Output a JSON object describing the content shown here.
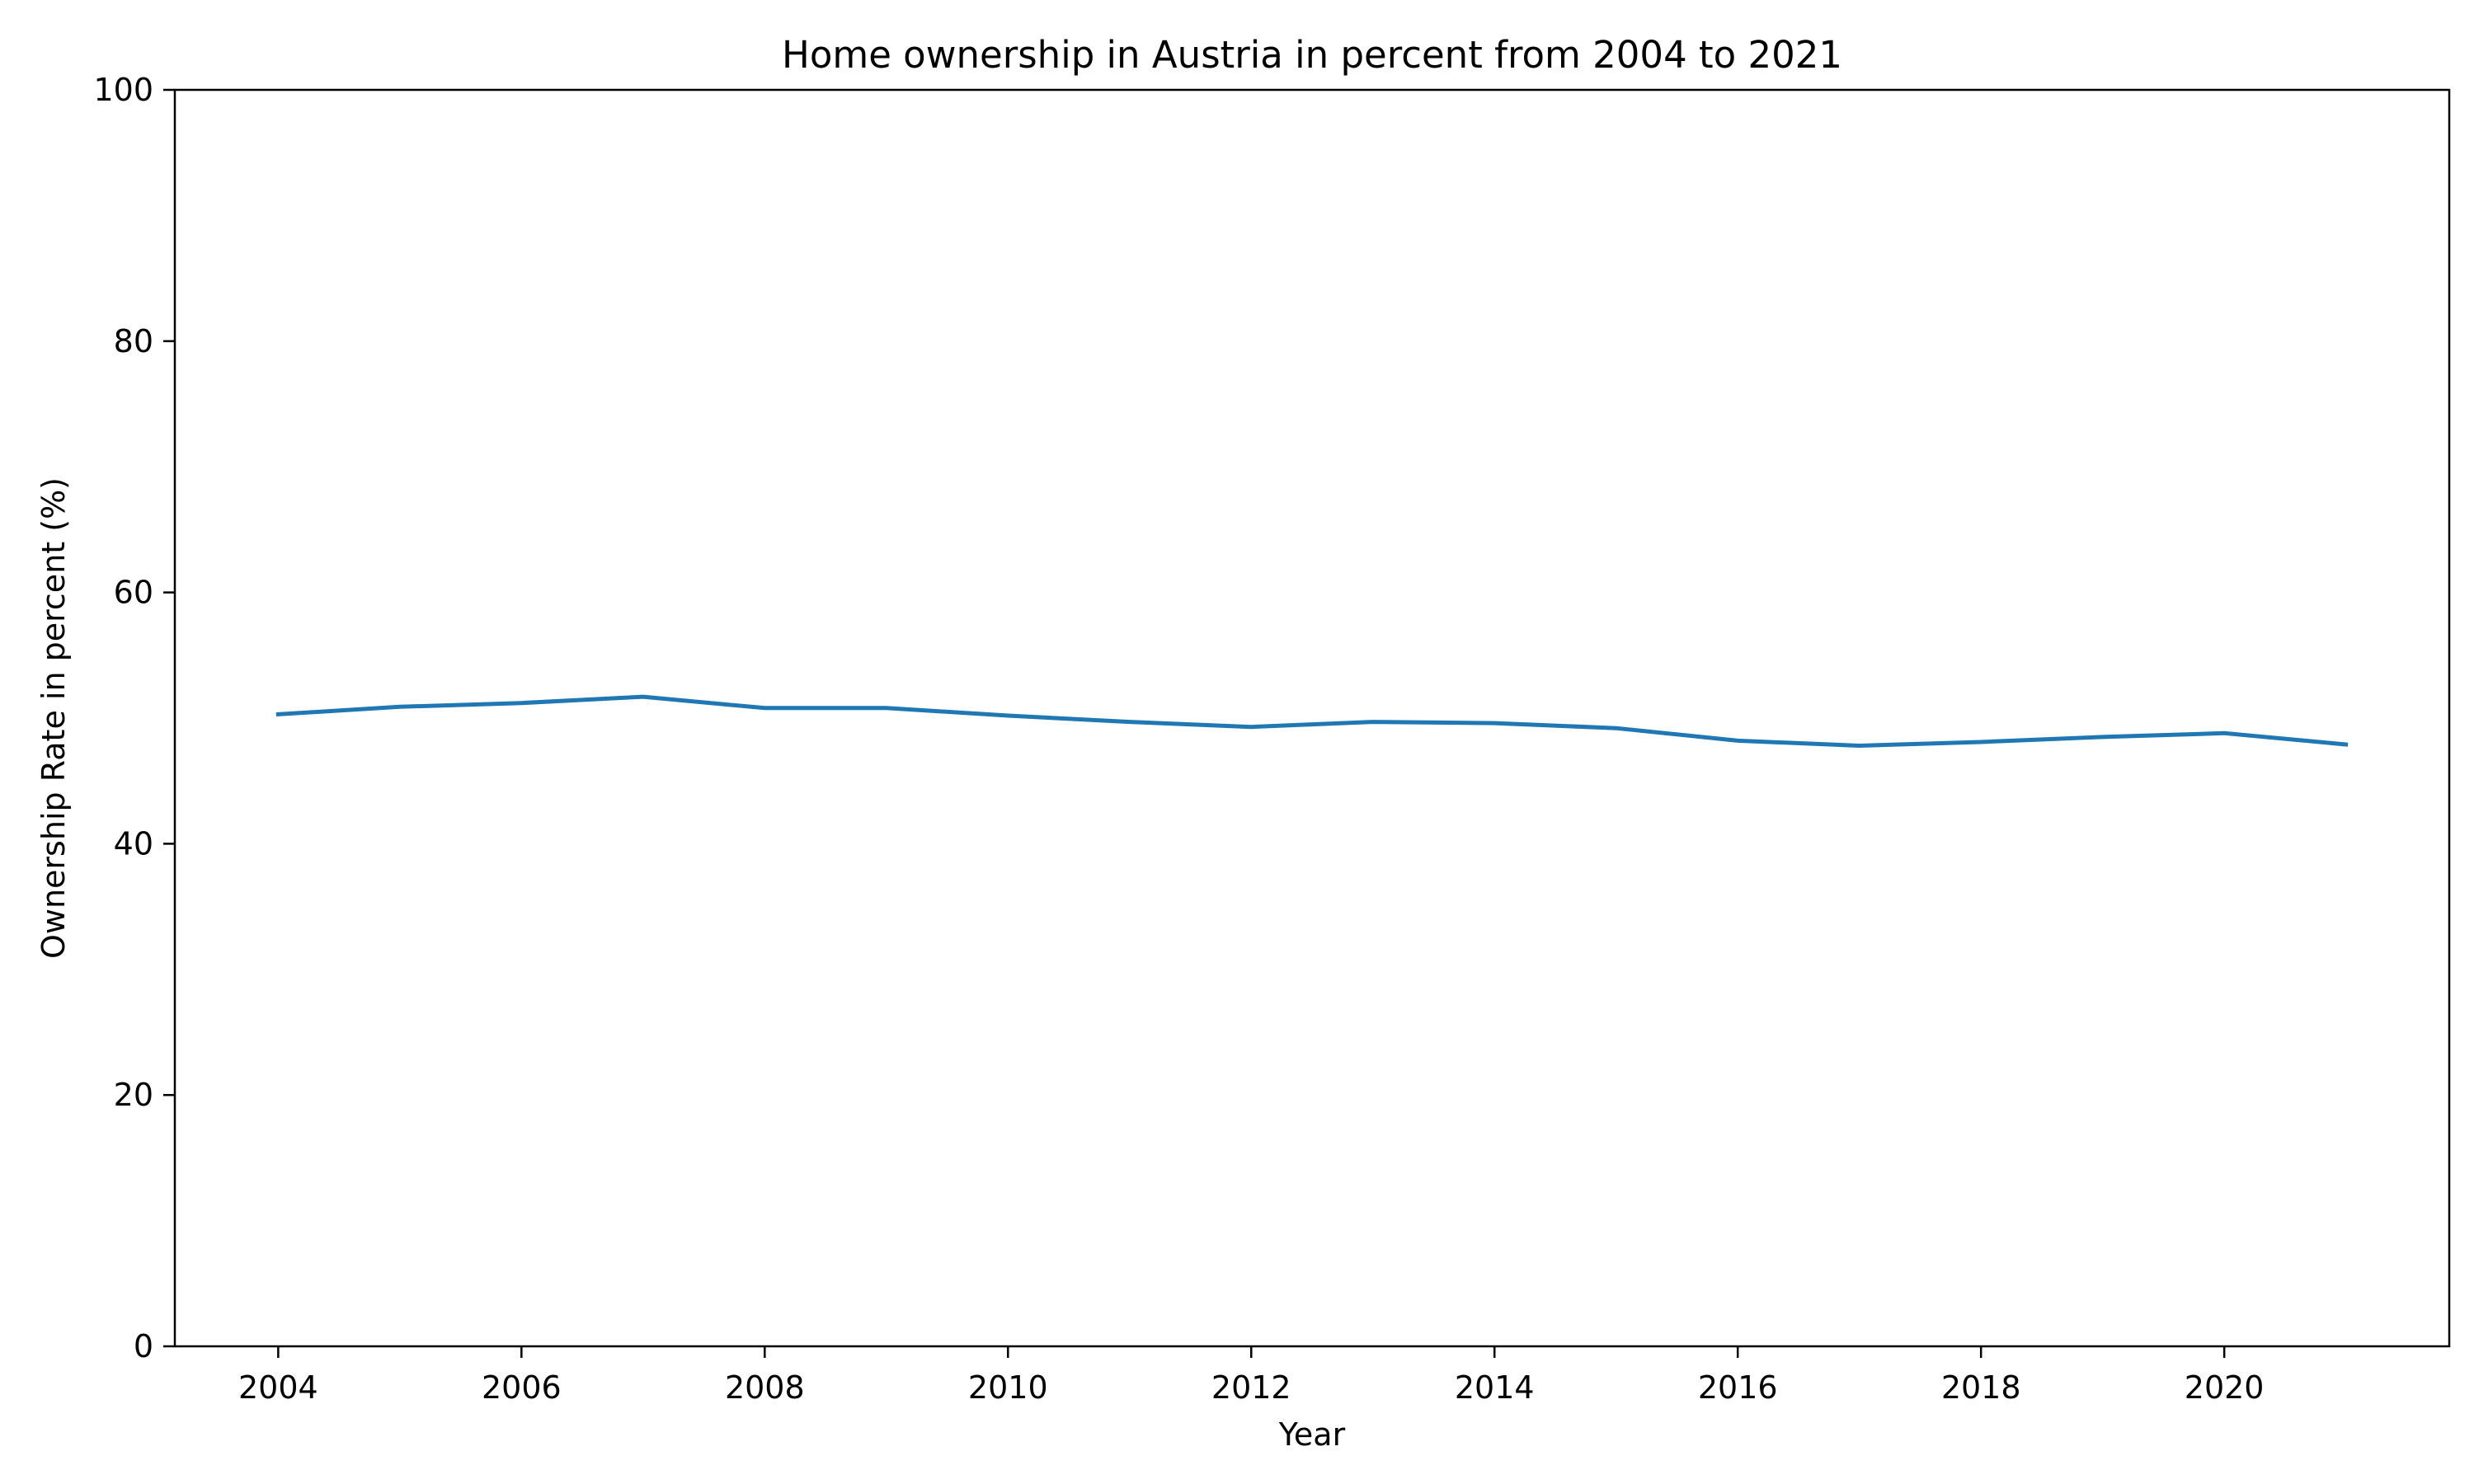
{
  "chart_data": {
    "type": "line",
    "title": "Home ownership in Austria in percent from 2004 to 2021",
    "xlabel": "Year",
    "ylabel": "Ownership Rate in percent (%)",
    "xlim": [
      2003.15,
      2021.85
    ],
    "ylim": [
      0,
      100
    ],
    "xticks": [
      "2004",
      "2006",
      "2008",
      "2010",
      "2012",
      "2014",
      "2016",
      "2018",
      "2020"
    ],
    "yticks": [
      "0",
      "20",
      "40",
      "60",
      "80",
      "100"
    ],
    "grid": false,
    "line_color": "#1f77b4",
    "series": [
      {
        "x": [
          2004,
          2005,
          2006,
          2007,
          2008,
          2009,
          2010,
          2011,
          2012,
          2013,
          2014,
          2015,
          2016,
          2017,
          2018,
          2019,
          2020,
          2021
        ],
        "values": [
          50.3,
          50.9,
          51.2,
          51.7,
          50.8,
          50.8,
          50.2,
          49.7,
          49.3,
          49.7,
          49.6,
          49.2,
          48.2,
          47.8,
          48.1,
          48.5,
          48.8,
          47.9
        ]
      }
    ]
  }
}
